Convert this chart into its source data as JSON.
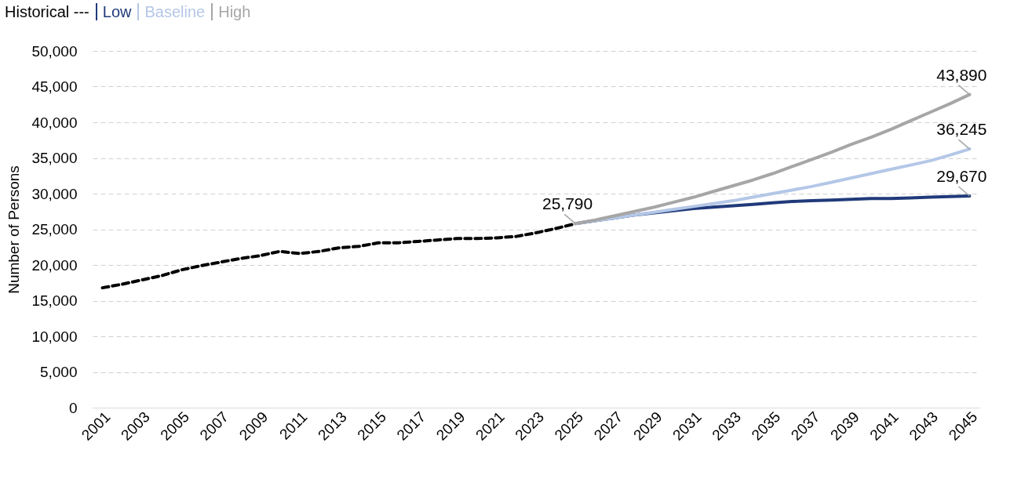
{
  "chart_data": {
    "type": "line",
    "ylabel": "Number of Persons",
    "legend": "top left",
    "grid": "y",
    "xlim": [
      2000.5,
      2045.5
    ],
    "xticks": [
      2001,
      2003,
      2005,
      2007,
      2009,
      2011,
      2013,
      2015,
      2017,
      2019,
      2021,
      2023,
      2025,
      2027,
      2029,
      2031,
      2033,
      2035,
      2037,
      2039,
      2041,
      2043,
      2045
    ],
    "ylim": [
      0,
      50000
    ],
    "yticks": [
      {
        "value": 0,
        "label": "0"
      },
      {
        "value": 5000,
        "label": "5,000"
      },
      {
        "value": 10000,
        "label": "10,000"
      },
      {
        "value": 15000,
        "label": "15,000"
      },
      {
        "value": 20000,
        "label": "20,000"
      },
      {
        "value": 25000,
        "label": "25,000"
      },
      {
        "value": 30000,
        "label": "30,000"
      },
      {
        "value": 35000,
        "label": "35,000"
      },
      {
        "value": 40000,
        "label": "40,000"
      },
      {
        "value": 45000,
        "label": "45,000"
      },
      {
        "value": 50000,
        "label": "50,000"
      }
    ],
    "series": [
      {
        "name": "Historical ---",
        "color": "#000000",
        "line_style": "dashed",
        "x": [
          2001,
          2002,
          2003,
          2004,
          2005,
          2006,
          2007,
          2008,
          2009,
          2010,
          2011,
          2012,
          2013,
          2014,
          2015,
          2016,
          2017,
          2018,
          2019,
          2020,
          2021,
          2022,
          2023,
          2024,
          2025
        ],
        "values": [
          16800,
          17300,
          17900,
          18500,
          19300,
          19900,
          20400,
          20900,
          21300,
          21900,
          21600,
          21900,
          22400,
          22600,
          23100,
          23100,
          23300,
          23500,
          23700,
          23700,
          23800,
          24000,
          24500,
          25100,
          25790
        ],
        "value_labels": [
          null,
          null,
          null,
          null,
          null,
          null,
          null,
          null,
          null,
          null,
          null,
          null,
          null,
          null,
          null,
          null,
          null,
          null,
          null,
          null,
          null,
          null,
          null,
          null,
          "25,790"
        ]
      },
      {
        "name": "Low",
        "color": "#203a7a",
        "line_style": "solid",
        "x": [
          2025,
          2026,
          2027,
          2028,
          2029,
          2030,
          2031,
          2032,
          2033,
          2034,
          2035,
          2036,
          2037,
          2038,
          2039,
          2040,
          2041,
          2042,
          2043,
          2044,
          2045
        ],
        "values": [
          25790,
          26200,
          26600,
          27000,
          27300,
          27600,
          27900,
          28100,
          28300,
          28500,
          28700,
          28900,
          29000,
          29100,
          29200,
          29300,
          29300,
          29400,
          29500,
          29600,
          29670
        ],
        "value_labels": [
          null,
          null,
          null,
          null,
          null,
          null,
          null,
          null,
          null,
          null,
          null,
          null,
          null,
          null,
          null,
          null,
          null,
          null,
          null,
          null,
          "29,670"
        ]
      },
      {
        "name": "Baseline",
        "color": "#b4c7e7",
        "line_style": "solid",
        "x": [
          2025,
          2026,
          2027,
          2028,
          2029,
          2030,
          2031,
          2032,
          2033,
          2034,
          2035,
          2036,
          2037,
          2038,
          2039,
          2040,
          2041,
          2042,
          2043,
          2044,
          2045
        ],
        "values": [
          25790,
          26200,
          26600,
          27000,
          27400,
          27800,
          28200,
          28600,
          29000,
          29500,
          30000,
          30500,
          31000,
          31600,
          32200,
          32800,
          33400,
          34000,
          34600,
          35400,
          36245
        ],
        "value_labels": [
          null,
          null,
          null,
          null,
          null,
          null,
          null,
          null,
          null,
          null,
          null,
          null,
          null,
          null,
          null,
          null,
          null,
          null,
          null,
          null,
          "36,245"
        ]
      },
      {
        "name": "High",
        "color": "#a6a6a6",
        "line_style": "solid",
        "x": [
          2025,
          2026,
          2027,
          2028,
          2029,
          2030,
          2031,
          2032,
          2033,
          2034,
          2035,
          2036,
          2037,
          2038,
          2039,
          2040,
          2041,
          2042,
          2043,
          2044,
          2045
        ],
        "values": [
          25790,
          26300,
          26900,
          27500,
          28100,
          28800,
          29500,
          30300,
          31100,
          31900,
          32800,
          33800,
          34800,
          35800,
          36900,
          37900,
          39000,
          40200,
          41400,
          42600,
          43890
        ],
        "value_labels": [
          null,
          null,
          null,
          null,
          null,
          null,
          null,
          null,
          null,
          null,
          null,
          null,
          null,
          null,
          null,
          null,
          null,
          null,
          null,
          null,
          "43,890"
        ]
      }
    ]
  }
}
